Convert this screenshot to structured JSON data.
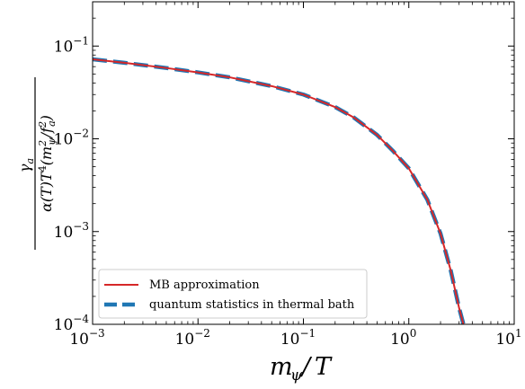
{
  "chart_data": {
    "type": "line",
    "x_scale": "log",
    "y_scale": "log",
    "xlim": [
      0.001,
      10
    ],
    "ylim": [
      0.0001,
      0.3
    ],
    "xlabel": "m_ψ / T",
    "ylabel": "γ_a / [α(T) T⁴ (m_ψ² / f_a²)]",
    "x_ticks": [
      {
        "value": 0.001,
        "base": "10",
        "exp": "−3"
      },
      {
        "value": 0.01,
        "base": "10",
        "exp": "−2"
      },
      {
        "value": 0.1,
        "base": "10",
        "exp": "−1"
      },
      {
        "value": 1,
        "base": "10",
        "exp": "0"
      },
      {
        "value": 10,
        "base": "10",
        "exp": "1"
      }
    ],
    "y_ticks": [
      {
        "value": 0.0001,
        "base": "10",
        "exp": "−4"
      },
      {
        "value": 0.001,
        "base": "10",
        "exp": "−3"
      },
      {
        "value": 0.01,
        "base": "10",
        "exp": "−2"
      },
      {
        "value": 0.1,
        "base": "10",
        "exp": "−1"
      }
    ],
    "grid": false,
    "legend_position": "lower-left",
    "series": [
      {
        "name": "MB approximation",
        "color": "#d62728",
        "style": "solid",
        "x": [
          0.001,
          0.002,
          0.005,
          0.01,
          0.02,
          0.05,
          0.1,
          0.2,
          0.3,
          0.5,
          0.7,
          1.0,
          1.5,
          2.0,
          2.5,
          3.0,
          3.3
        ],
        "y": [
          0.072,
          0.066,
          0.058,
          0.052,
          0.046,
          0.037,
          0.03,
          0.022,
          0.017,
          0.011,
          0.0075,
          0.0048,
          0.0022,
          0.00095,
          0.00038,
          0.00015,
          0.0001
        ]
      },
      {
        "name": "quantum statistics in thermal bath",
        "color": "#1f77b4",
        "style": "dashed",
        "x": [
          0.001,
          0.002,
          0.005,
          0.01,
          0.02,
          0.05,
          0.1,
          0.2,
          0.3,
          0.5,
          0.7,
          1.0,
          1.5,
          2.0,
          2.5,
          3.0,
          3.3
        ],
        "y": [
          0.072,
          0.066,
          0.058,
          0.052,
          0.046,
          0.037,
          0.03,
          0.022,
          0.017,
          0.011,
          0.0075,
          0.0048,
          0.0022,
          0.00095,
          0.00038,
          0.00015,
          0.0001
        ]
      }
    ]
  }
}
